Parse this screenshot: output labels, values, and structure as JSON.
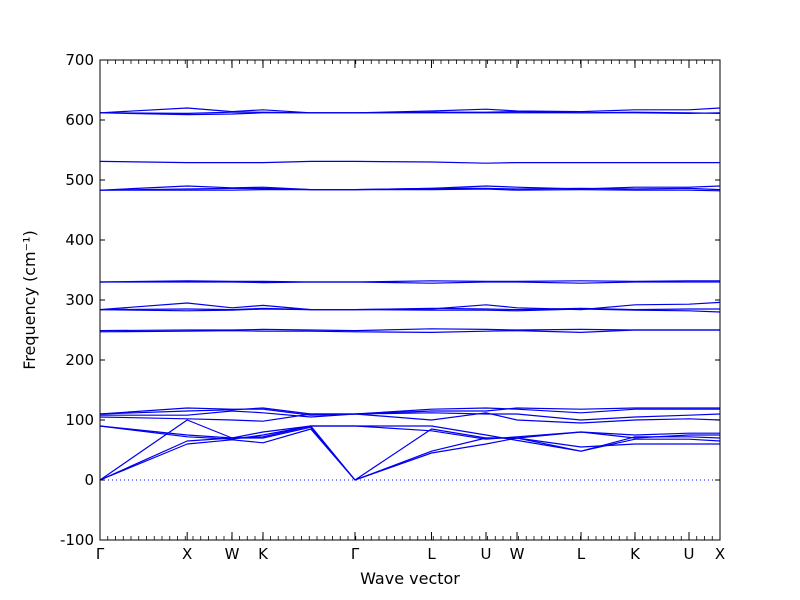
{
  "chart_data": {
    "type": "line",
    "title": "",
    "xlabel": "Wave vector",
    "ylabel": "Frequency (cm⁻¹)",
    "ylim": [
      -100,
      700
    ],
    "yticks": [
      -100,
      0,
      100,
      200,
      300,
      400,
      500,
      600,
      700
    ],
    "grid": false,
    "legend": "none",
    "line_color": "#0000ee",
    "zero_line_style": "dotted",
    "xticks": [
      {
        "label": "Γ",
        "pos": 0.0
      },
      {
        "label": "X",
        "pos": 0.1406
      },
      {
        "label": "W",
        "pos": 0.2129
      },
      {
        "label": "K",
        "pos": 0.2629
      },
      {
        "label": "Γ",
        "pos": 0.4113
      },
      {
        "label": "L",
        "pos": 0.5347
      },
      {
        "label": "U",
        "pos": 0.6226
      },
      {
        "label": "W",
        "pos": 0.6726
      },
      {
        "label": "L",
        "pos": 0.7758
      },
      {
        "label": "K",
        "pos": 0.8629
      },
      {
        "label": "U",
        "pos": 0.95
      },
      {
        "label": "X",
        "pos": 1.0
      }
    ],
    "series": [
      {
        "values": [
          0,
          60,
          67,
          62,
          85,
          0,
          45,
          60,
          70,
          55,
          60,
          60,
          60
        ]
      },
      {
        "values": [
          0,
          65,
          70,
          70,
          88,
          0,
          48,
          70,
          70,
          48,
          68,
          68,
          65
        ]
      },
      {
        "values": [
          0,
          100,
          70,
          80,
          90,
          0,
          85,
          70,
          70,
          80,
          70,
          75,
          75
        ]
      },
      {
        "values": [
          90,
          72,
          68,
          75,
          90,
          90,
          90,
          75,
          66,
          48,
          72,
          72,
          70
        ]
      },
      {
        "values": [
          90,
          75,
          70,
          72,
          90,
          90,
          82,
          68,
          72,
          80,
          75,
          78,
          78
        ]
      },
      {
        "values": [
          105,
          102,
          100,
          98,
          110,
          110,
          100,
          112,
          100,
          95,
          100,
          102,
          100
        ]
      },
      {
        "values": [
          108,
          108,
          115,
          112,
          105,
          110,
          112,
          110,
          110,
          100,
          105,
          108,
          110
        ]
      },
      {
        "values": [
          110,
          120,
          118,
          118,
          108,
          110,
          118,
          120,
          118,
          112,
          118,
          118,
          118
        ]
      },
      {
        "values": [
          110,
          115,
          117,
          120,
          110,
          110,
          115,
          115,
          120,
          118,
          120,
          120,
          120
        ]
      },
      {
        "values": [
          247,
          248,
          249,
          248,
          248,
          247,
          246,
          248,
          249,
          246,
          250,
          250,
          250
        ]
      },
      {
        "values": [
          249,
          250,
          250,
          251,
          250,
          249,
          252,
          251,
          250,
          251,
          250,
          250,
          250
        ]
      },
      {
        "values": [
          284,
          285,
          284,
          286,
          284,
          284,
          286,
          285,
          284,
          286,
          284,
          285,
          285
        ]
      },
      {
        "values": [
          284,
          295,
          287,
          291,
          284,
          284,
          285,
          292,
          287,
          284,
          292,
          293,
          296
        ]
      },
      {
        "values": [
          284,
          282,
          283,
          285,
          284,
          284,
          283,
          283,
          282,
          285,
          283,
          282,
          280
        ]
      },
      {
        "values": [
          330,
          332,
          331,
          331,
          330,
          330,
          332,
          331,
          331,
          332,
          331,
          332,
          332
        ]
      },
      {
        "values": [
          330,
          330,
          330,
          329,
          330,
          330,
          328,
          330,
          330,
          328,
          330,
          330,
          330
        ]
      },
      {
        "values": [
          483,
          485,
          486,
          486,
          484,
          484,
          486,
          486,
          485,
          486,
          485,
          486,
          484
        ]
      },
      {
        "values": [
          483,
          490,
          487,
          488,
          484,
          484,
          486,
          490,
          488,
          485,
          488,
          488,
          490
        ]
      },
      {
        "values": [
          483,
          483,
          483,
          484,
          484,
          484,
          484,
          485,
          483,
          484,
          483,
          483,
          482
        ]
      },
      {
        "values": [
          531,
          529,
          529,
          529,
          531,
          531,
          530,
          528,
          529,
          529,
          529,
          529,
          529
        ]
      },
      {
        "values": [
          612,
          620,
          614,
          617,
          612,
          612,
          615,
          618,
          615,
          614,
          617,
          617,
          620
        ]
      },
      {
        "values": [
          612,
          609,
          610,
          612,
          612,
          612,
          613,
          613,
          614,
          612,
          613,
          612,
          611
        ]
      },
      {
        "values": [
          612,
          611,
          613,
          613,
          612,
          612,
          612,
          612,
          612,
          612,
          612,
          611,
          612
        ]
      }
    ],
    "series_x_positions": [
      0.0,
      0.1406,
      0.2129,
      0.2629,
      0.34,
      0.4113,
      0.5347,
      0.6226,
      0.6726,
      0.7758,
      0.8629,
      0.95,
      1.0
    ]
  }
}
